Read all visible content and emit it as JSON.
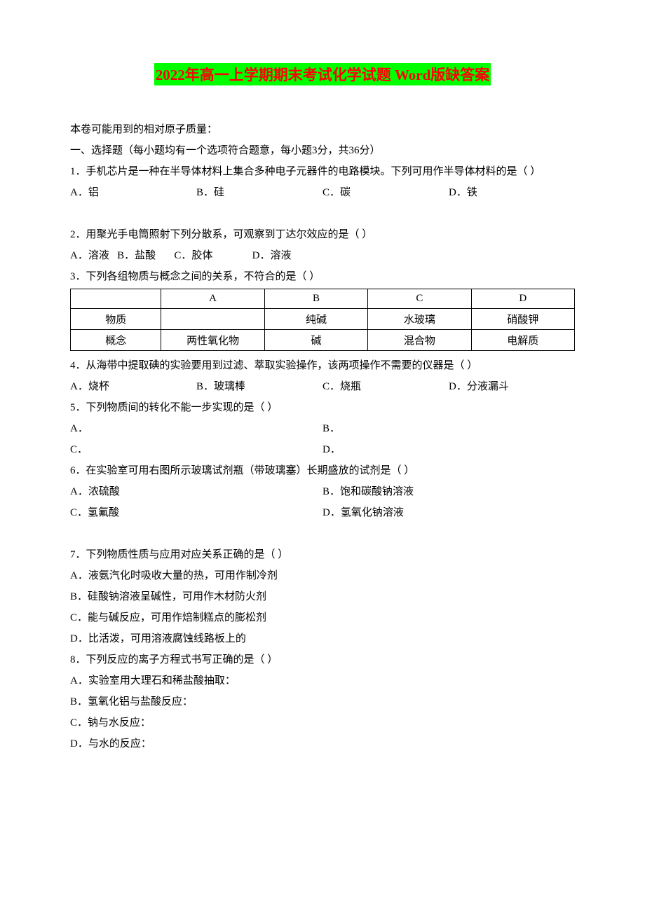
{
  "title": "2022年高一上学期期末考试化学试题 Word版缺答案",
  "intro": "本卷可能用到的相对原子质量：",
  "section1": "一、选择题（每小题均有一个选项符合题意，每小题3分，共36分）",
  "q1": {
    "stem": "1．手机芯片是一种在半导体材料上集合多种电子元器件的电路模块。下列可用作半导体材料的是（      ）",
    "A": "A．铝",
    "B": "B．硅",
    "C": "C．碳",
    "D": "D．铁"
  },
  "q2": {
    "stem": "2．用聚光手电筒照射下列分散系，可观察到丁达尔效应的是（      ）",
    "A": "A．溶液",
    "B": "B．盐酸",
    "C": "C．胶体",
    "D": "D．溶液"
  },
  "q3": {
    "stem": "3．下列各组物质与概念之间的关系，不符合的是（      ）",
    "table": {
      "headers": [
        "",
        "A",
        "B",
        "C",
        "D"
      ],
      "row1": [
        "物质",
        "",
        "纯碱",
        "水玻璃",
        "硝酸钾"
      ],
      "row2": [
        "概念",
        "两性氧化物",
        "碱",
        "混合物",
        "电解质"
      ]
    }
  },
  "q4": {
    "stem": "4．从海带中提取碘的实验要用到过滤、萃取实验操作，该两项操作不需要的仪器是（      ）",
    "A": "A．烧杯",
    "B": "B．玻璃棒",
    "C": "C．烧瓶",
    "D": "D．分液漏斗"
  },
  "q5": {
    "stem": "5．下列物质间的转化不能一步实现的是（      ）",
    "A": "A．",
    "B": "B．",
    "C": "C．",
    "D": "D．"
  },
  "q6": {
    "stem": "6．在实验室可用右图所示玻璃试剂瓶（带玻璃塞）长期盛放的试剂是（      ）",
    "A": "A．浓硫酸",
    "B": "B．饱和碳酸钠溶液",
    "C": "C．氢氟酸",
    "D": "D．氢氧化钠溶液"
  },
  "q7": {
    "stem": "7．下列物质性质与应用对应关系正确的是（      ）",
    "A": "A．液氨汽化时吸收大量的热，可用作制冷剂",
    "B": "B．硅酸钠溶液呈碱性，可用作木材防火剂",
    "C": "C．能与碱反应，可用作焙制糕点的膨松剂",
    "D": "D．比活泼，可用溶液腐蚀线路板上的"
  },
  "q8": {
    "stem": "8．下列反应的离子方程式书写正确的是（      ）",
    "A": "A．实验室用大理石和稀盐酸抽取：",
    "B": "B．氢氧化铝与盐酸反应：",
    "C": "C．钠与水反应：",
    "D": "D．与水的反应："
  },
  "colors": {
    "title_text": "#ff0000",
    "title_bg": "#00ff00",
    "body_text": "#000000",
    "background": "#ffffff",
    "border": "#000000"
  },
  "fonts": {
    "title_size": 21,
    "body_size": 15
  }
}
